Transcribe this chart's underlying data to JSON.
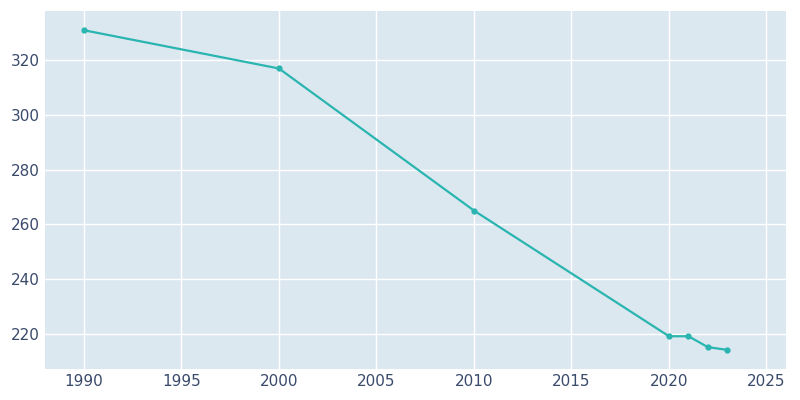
{
  "years": [
    1990,
    2000,
    2010,
    2020,
    2021,
    2022,
    2023
  ],
  "population": [
    331,
    317,
    265,
    219,
    219,
    215,
    214
  ],
  "line_color": "#2ab5b0",
  "marker_color": "#2ab5b0",
  "fig_bg_color": "#ffffff",
  "plot_bg_color": "#dce8f0",
  "grid_color": "#ffffff",
  "tick_color": "#3a4a6b",
  "xlim": [
    1988,
    2026
  ],
  "ylim": [
    207,
    338
  ],
  "xticks": [
    1990,
    1995,
    2000,
    2005,
    2010,
    2015,
    2020,
    2025
  ],
  "yticks": [
    220,
    240,
    260,
    280,
    300,
    320
  ],
  "figsize": [
    8.0,
    4.0
  ],
  "dpi": 100
}
